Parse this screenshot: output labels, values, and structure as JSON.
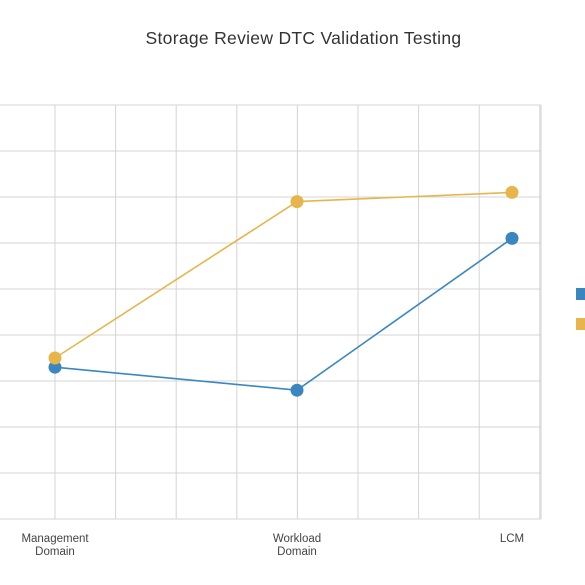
{
  "chart_data": {
    "type": "line",
    "title": "Storage Review DTC Validation Testing",
    "categories": [
      [
        "Management",
        "Domain"
      ],
      [
        "Workload",
        "Domain"
      ],
      [
        "LCM"
      ]
    ],
    "series": [
      {
        "values": [
          3.3,
          2.8,
          6.1
        ],
        "color": "#3a87c0"
      },
      {
        "values": [
          3.5,
          6.9,
          7.1
        ],
        "color": "#e8b54b"
      }
    ],
    "ylim": [
      0,
      9
    ],
    "grid": true,
    "legend_position": "right"
  }
}
